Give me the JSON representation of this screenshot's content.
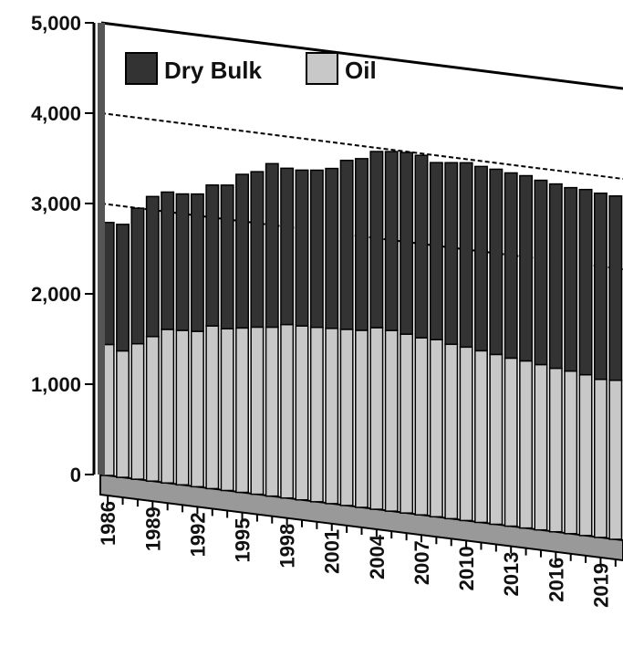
{
  "chart_data": {
    "type": "bar",
    "stacked": true,
    "three_d": true,
    "categories": [
      "1986",
      "1987",
      "1988",
      "1989",
      "1990",
      "1991",
      "1992",
      "1993",
      "1994",
      "1995",
      "1996",
      "1997",
      "1998",
      "1999",
      "2000",
      "2001",
      "2002",
      "2003",
      "2004",
      "2005",
      "2006",
      "2007",
      "2008",
      "2009",
      "2010",
      "2011",
      "2012",
      "2013",
      "2014",
      "2015",
      "2016",
      "2017",
      "2018",
      "2019",
      "2020"
    ],
    "x_tick_labels": [
      "1986",
      "1989",
      "1992",
      "1995",
      "1998",
      "2001",
      "2004",
      "2007",
      "2010",
      "2013",
      "2016",
      "2019"
    ],
    "series": [
      {
        "name": "Oil",
        "color": "#c8c8c8",
        "values": [
          1450,
          1400,
          1500,
          1600,
          1700,
          1710,
          1720,
          1800,
          1790,
          1820,
          1850,
          1870,
          1920,
          1925,
          1930,
          1940,
          1950,
          1960,
          2010,
          2000,
          1980,
          1960,
          1960,
          1930,
          1920,
          1900,
          1880,
          1860,
          1850,
          1830,
          1810,
          1800,
          1780,
          1750,
          1760
        ]
      },
      {
        "name": "Dry Bulk",
        "color": "#333333",
        "values": [
          1350,
          1400,
          1500,
          1550,
          1520,
          1510,
          1520,
          1560,
          1590,
          1700,
          1720,
          1810,
          1730,
          1725,
          1740,
          1770,
          1870,
          1900,
          1950,
          1980,
          2010,
          2020,
          1960,
          2010,
          2040,
          2040,
          2050,
          2050,
          2050,
          2040,
          2040,
          2030,
          2050,
          2060,
          2040
        ]
      }
    ],
    "yticks": [
      "0",
      "1,000",
      "2,000",
      "3,000",
      "4,000",
      "5,000"
    ],
    "ylim": [
      0,
      5000
    ],
    "legend": {
      "position": "top-left",
      "entries": [
        "Dry Bulk",
        "Oil"
      ]
    },
    "title": "",
    "xlabel": "",
    "ylabel": ""
  }
}
